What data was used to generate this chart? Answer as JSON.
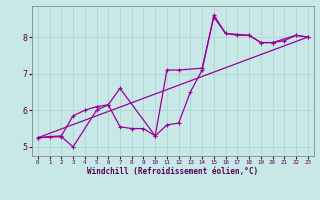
{
  "background_color": "#c8e8e8",
  "line_color": "#990099",
  "grid_color": "#b0d8d8",
  "xlabel": "Windchill (Refroidissement éolien,°C)",
  "xlim": [
    -0.5,
    23.5
  ],
  "ylim": [
    4.75,
    8.85
  ],
  "xticks": [
    0,
    1,
    2,
    3,
    4,
    5,
    6,
    7,
    8,
    9,
    10,
    11,
    12,
    13,
    14,
    15,
    16,
    17,
    18,
    19,
    20,
    21,
    22,
    23
  ],
  "yticks": [
    5,
    6,
    7,
    8
  ],
  "line1_x": [
    0,
    1,
    2,
    3,
    4,
    5,
    6,
    7,
    8,
    9,
    10,
    11,
    12,
    13,
    14,
    15,
    16,
    17,
    18,
    19,
    20,
    21,
    22,
    23
  ],
  "line1_y": [
    5.25,
    5.28,
    5.3,
    5.85,
    6.0,
    6.1,
    6.15,
    5.55,
    5.5,
    5.5,
    5.3,
    5.6,
    5.65,
    6.5,
    7.1,
    8.6,
    8.1,
    8.05,
    8.05,
    7.85,
    7.85,
    7.9,
    8.05,
    8.0
  ],
  "line2_x": [
    0,
    2,
    3,
    5,
    6,
    7,
    10,
    11,
    12,
    14,
    15,
    16,
    18,
    19,
    20,
    22,
    23
  ],
  "line2_y": [
    5.25,
    5.28,
    5.0,
    6.0,
    6.15,
    6.6,
    5.3,
    7.1,
    7.1,
    7.15,
    8.55,
    8.1,
    8.05,
    7.85,
    7.85,
    8.05,
    8.0
  ],
  "line3_x": [
    0,
    23
  ],
  "line3_y": [
    5.25,
    8.0
  ]
}
